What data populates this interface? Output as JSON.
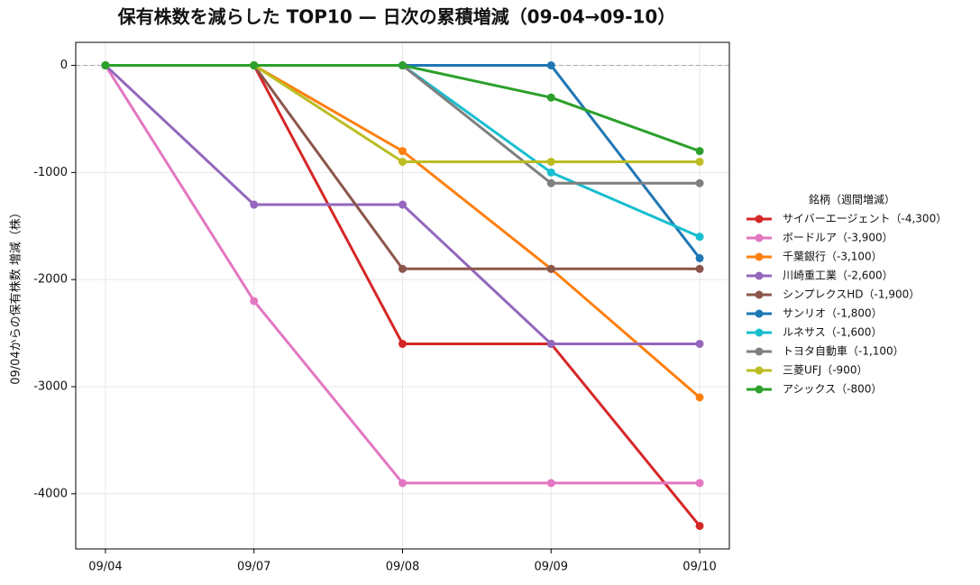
{
  "chart_data": {
    "type": "line",
    "title": "保有株数を減らした TOP10 — 日次の累積増減（09-04→09-10）",
    "y_label": "09/04からの保有株数 増減（株）",
    "legend_title": "銘柄（週間増減）",
    "legend_position": "right",
    "categories": [
      "09/04",
      "09/07",
      "09/08",
      "09/09",
      "09/10"
    ],
    "series": [
      {
        "name": "サイバーエージェント（-4,300）",
        "color": "#d62728",
        "values": [
          0,
          0,
          -2600,
          -2600,
          -4300
        ]
      },
      {
        "name": "ボードルア（-3,900）",
        "color": "#e377c2",
        "values": [
          0,
          -2200,
          -3900,
          -3900,
          -3900
        ]
      },
      {
        "name": "千葉銀行（-3,100）",
        "color": "#ff7f0e",
        "values": [
          0,
          0,
          -800,
          -1900,
          -3100
        ]
      },
      {
        "name": "川崎重工業（-2,600）",
        "color": "#9467bd",
        "values": [
          0,
          -1300,
          -1300,
          -2600,
          -2600
        ]
      },
      {
        "name": "シンプレクスHD（-1,900）",
        "color": "#8c564b",
        "values": [
          0,
          0,
          -1900,
          -1900,
          -1900
        ]
      },
      {
        "name": "サンリオ（-1,800）",
        "color": "#1f77b4",
        "values": [
          0,
          0,
          0,
          0,
          -1800
        ]
      },
      {
        "name": "ルネサス（-1,600）",
        "color": "#17becf",
        "values": [
          0,
          0,
          0,
          -1000,
          -1600
        ]
      },
      {
        "name": "トヨタ自動車（-1,100）",
        "color": "#7f7f7f",
        "values": [
          0,
          0,
          0,
          -1100,
          -1100
        ]
      },
      {
        "name": "三菱UFJ（-900）",
        "color": "#bcbd22",
        "values": [
          0,
          0,
          -900,
          -900,
          -900
        ]
      },
      {
        "name": "アシックス（-800）",
        "color": "#2ca02c",
        "values": [
          0,
          0,
          0,
          -300,
          -800
        ]
      }
    ],
    "ylim": [
      -4515,
      215
    ],
    "yticks": [
      0,
      -1000,
      -2000,
      -3000,
      -4000
    ],
    "reference_line": 0,
    "grid": true
  }
}
